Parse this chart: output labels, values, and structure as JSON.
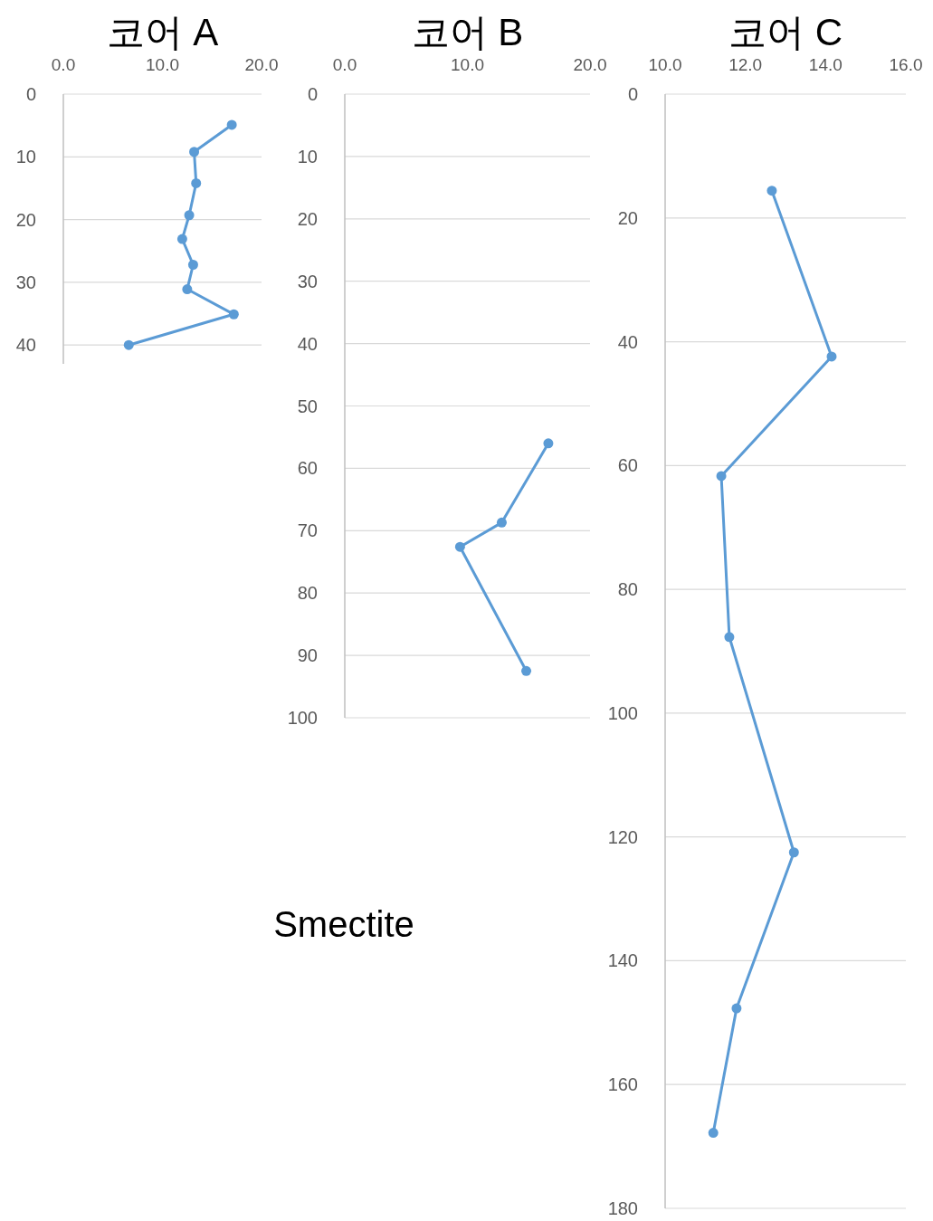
{
  "chart_data": [
    {
      "type": "line",
      "title": "코어 A",
      "xlim": [
        0,
        20
      ],
      "xticks": [
        {
          "value": 0,
          "label": "0.0"
        },
        {
          "value": 10,
          "label": "10.0"
        },
        {
          "value": 20,
          "label": "20.0"
        }
      ],
      "ylim": [
        43,
        0
      ],
      "yticks": [
        0,
        10,
        20,
        30,
        40
      ],
      "grid": "y",
      "marker": "circle",
      "series": [
        {
          "color": "#5b9bd5",
          "x": [
            17.0,
            13.2,
            13.4,
            12.7,
            12.0,
            13.1,
            12.5,
            17.2,
            6.6
          ],
          "values": [
            4.9,
            9.2,
            14.2,
            19.3,
            23.1,
            27.2,
            31.1,
            35.1,
            40.0
          ]
        }
      ]
    },
    {
      "type": "line",
      "title": "코어 B",
      "xlim": [
        0,
        20
      ],
      "xticks": [
        {
          "value": 0,
          "label": "0.0"
        },
        {
          "value": 10,
          "label": "10.0"
        },
        {
          "value": 20,
          "label": "20.0"
        }
      ],
      "ylim": [
        100,
        0
      ],
      "yticks": [
        0,
        10,
        20,
        30,
        40,
        50,
        60,
        70,
        80,
        90,
        100
      ],
      "grid": "y",
      "marker": "circle",
      "annotations": [
        "Smectite"
      ],
      "series": [
        {
          "color": "#5b9bd5",
          "x": [
            16.6,
            12.8,
            9.4,
            14.8
          ],
          "values": [
            56.0,
            68.7,
            72.6,
            92.5
          ]
        }
      ]
    },
    {
      "type": "line",
      "title": "코어 C",
      "xlim": [
        10,
        16
      ],
      "xticks": [
        {
          "value": 10,
          "label": "10.0"
        },
        {
          "value": 12,
          "label": "12.0"
        },
        {
          "value": 14,
          "label": "14.0"
        },
        {
          "value": 16,
          "label": "16.0"
        }
      ],
      "ylim": [
        180,
        0
      ],
      "yticks": [
        0,
        20,
        40,
        60,
        80,
        100,
        120,
        140,
        160,
        180
      ],
      "grid": "y",
      "marker": "circle",
      "series": [
        {
          "color": "#5b9bd5",
          "x": [
            12.66,
            14.15,
            11.4,
            11.6,
            13.21,
            11.78,
            11.2
          ],
          "values": [
            15.6,
            42.4,
            61.7,
            87.7,
            122.5,
            147.7,
            167.8
          ]
        }
      ]
    }
  ]
}
